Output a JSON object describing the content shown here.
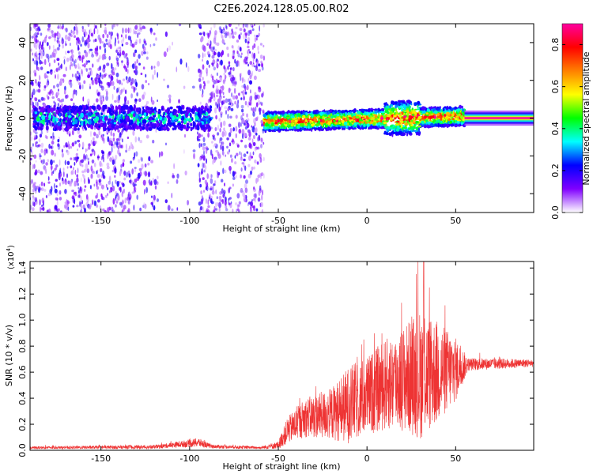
{
  "title": "C2E6.2024.128.05.00.R02",
  "chart_data": [
    {
      "type": "heatmap",
      "xlabel": "Height of straight line (km)",
      "ylabel": "Frequency (Hz)",
      "xlim": [
        -190,
        94
      ],
      "ylim": [
        -50,
        50
      ],
      "x_ticks": [
        -150,
        -100,
        -50,
        0,
        50
      ],
      "y_ticks": [
        -40,
        -20,
        0,
        20,
        40
      ],
      "colorbar": {
        "label": "Normalized spectral amplitude",
        "range": [
          0,
          0.9
        ],
        "ticks": [
          0.0,
          0.2,
          0.4,
          0.6,
          0.8
        ],
        "colormap": [
          "#ffffff",
          "#8000ff",
          "#0000ff",
          "#00ffff",
          "#00ff00",
          "#ffff00",
          "#ff8000",
          "#ff0000",
          "#ff00a0"
        ]
      },
      "regions": [
        {
          "x_range": [
            -190,
            -58
          ],
          "noise": "scattered wideband noise, amplitude 0.05-0.25",
          "band_center_hz": 0,
          "band_halfwidth_hz": 6
        },
        {
          "x_range": [
            -58,
            55
          ],
          "noise": "band near 0 Hz rising slightly with height, amplitude 0.3-0.9",
          "band_center_hz": 0,
          "band_halfwidth_hz": 5
        },
        {
          "x_range": [
            55,
            94
          ],
          "noise": "steady narrow band, amplitude ~0.9",
          "band_center_hz": 0,
          "band_halfwidth_hz": 2
        }
      ],
      "grid": false
    },
    {
      "type": "line",
      "xlabel": "Height of straight line (km)",
      "ylabel": "SNR (10 * v/v)",
      "exponent_label": "(x10",
      "exponent_power": "4",
      "exponent_close": ")",
      "xlim": [
        -190,
        94
      ],
      "ylim": [
        0,
        1.45
      ],
      "x_ticks": [
        -150,
        -100,
        -50,
        0,
        50
      ],
      "y_ticks": [
        "0.0",
        "0.2",
        "0.4",
        "0.6",
        "0.8",
        "1.0",
        "1.2",
        "1.4"
      ],
      "color": "#ee3333",
      "envelope": [
        {
          "x": -190,
          "mean": 0.02,
          "spread": 0.01
        },
        {
          "x": -120,
          "mean": 0.025,
          "spread": 0.015
        },
        {
          "x": -110,
          "mean": 0.04,
          "spread": 0.02
        },
        {
          "x": -95,
          "mean": 0.06,
          "spread": 0.035
        },
        {
          "x": -88,
          "mean": 0.03,
          "spread": 0.015
        },
        {
          "x": -60,
          "mean": 0.02,
          "spread": 0.01
        },
        {
          "x": -50,
          "mean": 0.04,
          "spread": 0.03
        },
        {
          "x": -45,
          "mean": 0.15,
          "spread": 0.1
        },
        {
          "x": -35,
          "mean": 0.25,
          "spread": 0.15
        },
        {
          "x": -20,
          "mean": 0.28,
          "spread": 0.2
        },
        {
          "x": -10,
          "mean": 0.35,
          "spread": 0.3
        },
        {
          "x": 0,
          "mean": 0.42,
          "spread": 0.3
        },
        {
          "x": 10,
          "mean": 0.5,
          "spread": 0.35
        },
        {
          "x": 20,
          "mean": 0.55,
          "spread": 0.4
        },
        {
          "x": 30,
          "mean": 0.58,
          "spread": 0.5
        },
        {
          "x": 40,
          "mean": 0.6,
          "spread": 0.4
        },
        {
          "x": 50,
          "mean": 0.62,
          "spread": 0.25
        },
        {
          "x": 57,
          "mean": 0.66,
          "spread": 0.05
        },
        {
          "x": 94,
          "mean": 0.67,
          "spread": 0.03
        }
      ],
      "peak": {
        "x": 32,
        "y": 1.45
      },
      "grid": false
    }
  ]
}
